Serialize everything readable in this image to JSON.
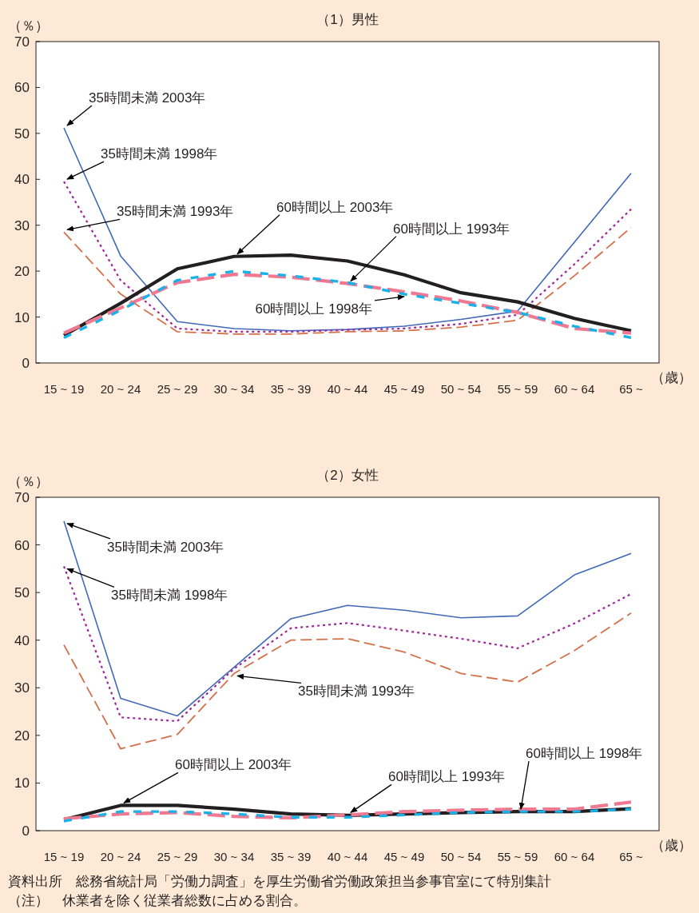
{
  "chart_data": [
    {
      "type": "line",
      "title": "（1）男性",
      "ylabel": "（％）",
      "xlabel": "（歳）",
      "categories": [
        "15 ~ 19",
        "20 ~ 24",
        "25 ~ 29",
        "30 ~ 34",
        "35 ~ 39",
        "40 ~ 44",
        "45 ~ 49",
        "50 ~ 54",
        "55 ~ 59",
        "60 ~ 64",
        "65 ~"
      ],
      "ylim": [
        0,
        70
      ],
      "yticks": [
        0,
        10,
        20,
        30,
        40,
        50,
        60,
        70
      ],
      "grid": false,
      "series": [
        {
          "color": "#4169b8",
          "line_style": "solid",
          "values": [
            51.2,
            23.3,
            9.0,
            7.5,
            7.0,
            7.3,
            8.0,
            9.5,
            11.3,
            26.3,
            41.3
          ]
        },
        {
          "color": "#a0279a",
          "line_style": "dotted",
          "values": [
            39.5,
            18.0,
            7.5,
            6.8,
            6.8,
            7.2,
            7.5,
            8.5,
            10.5,
            21.5,
            33.5
          ]
        },
        {
          "color": "#d4704a",
          "line_style": "dashed",
          "values": [
            28.5,
            15.0,
            6.8,
            6.3,
            6.3,
            6.8,
            7.0,
            7.8,
            9.3,
            19.0,
            29.5
          ]
        },
        {
          "color": "#231f20",
          "line_style": "solid",
          "values": [
            6.0,
            13.0,
            20.5,
            23.2,
            23.5,
            22.2,
            19.2,
            15.3,
            13.3,
            9.7,
            7.0
          ]
        },
        {
          "color": "#f07890",
          "line_style": "dashed",
          "values": [
            6.5,
            12.0,
            17.5,
            19.3,
            18.7,
            17.3,
            15.5,
            13.5,
            11.0,
            7.5,
            6.5
          ]
        },
        {
          "color": "#1ab0e8",
          "line_style": "dashed",
          "values": [
            5.5,
            11.5,
            18.0,
            20.0,
            19.0,
            17.5,
            15.0,
            13.0,
            11.0,
            8.0,
            5.5
          ]
        }
      ],
      "annotations": [
        {
          "text": "35時間未満 2003年",
          "x": "15 ~ 19",
          "y": 51.2
        },
        {
          "text": "35時間未満 1998年",
          "x": "15 ~ 19",
          "y": 39.5
        },
        {
          "text": "35時間未満 1993年",
          "x": "15 ~ 19",
          "y": 28.5
        },
        {
          "text": "60時間以上 2003年",
          "x": "30 ~ 34",
          "y": 23.2
        },
        {
          "text": "60時間以上 1993年",
          "x": "40 ~ 44",
          "y": 17.3
        },
        {
          "text": "60時間以上 1998年",
          "x": "45 ~ 49",
          "y": 15.0
        }
      ]
    },
    {
      "type": "line",
      "title": "（2）女性",
      "ylabel": "（％）",
      "xlabel": "（歳）",
      "categories": [
        "15 ~ 19",
        "20 ~ 24",
        "25 ~ 29",
        "30 ~ 34",
        "35 ~ 39",
        "40 ~ 44",
        "45 ~ 49",
        "50 ~ 54",
        "55 ~ 59",
        "60 ~ 64",
        "65 ~"
      ],
      "ylim": [
        0,
        70
      ],
      "yticks": [
        0,
        10,
        20,
        30,
        40,
        50,
        60,
        70
      ],
      "grid": false,
      "series": [
        {
          "color": "#4169b8",
          "line_style": "solid",
          "values": [
            65.0,
            27.8,
            24.1,
            34.3,
            44.5,
            47.3,
            46.3,
            44.7,
            45.1,
            53.7,
            58.2
          ]
        },
        {
          "color": "#a0279a",
          "line_style": "dotted",
          "values": [
            55.5,
            23.8,
            23.0,
            34.0,
            42.5,
            43.6,
            42.0,
            40.3,
            38.3,
            43.5,
            49.7
          ]
        },
        {
          "color": "#d4704a",
          "line_style": "dashed",
          "values": [
            39.0,
            17.2,
            20.2,
            33.0,
            40.0,
            40.3,
            37.5,
            33.0,
            31.2,
            37.8,
            45.7
          ]
        },
        {
          "color": "#231f20",
          "line_style": "solid",
          "values": [
            2.3,
            5.3,
            5.3,
            4.5,
            3.5,
            3.2,
            3.5,
            3.8,
            4.0,
            4.0,
            4.6
          ]
        },
        {
          "color": "#f07890",
          "line_style": "dashed",
          "values": [
            2.5,
            3.5,
            3.8,
            3.0,
            2.7,
            3.3,
            4.0,
            4.3,
            4.5,
            4.5,
            6.0
          ]
        },
        {
          "color": "#1ab0e8",
          "line_style": "dashed",
          "values": [
            2.0,
            4.0,
            4.0,
            3.5,
            2.8,
            2.8,
            3.3,
            3.8,
            4.0,
            4.0,
            4.5
          ]
        }
      ],
      "annotations": [
        {
          "text": "35時間未満 2003年",
          "x": "15 ~ 19",
          "y": 65.0
        },
        {
          "text": "35時間未満 1998年",
          "x": "15 ~ 19",
          "y": 55.5
        },
        {
          "text": "35時間未満 1993年",
          "x": "30 ~ 34",
          "y": 33.0
        },
        {
          "text": "60時間以上 2003年",
          "x": "20 ~ 24",
          "y": 5.3
        },
        {
          "text": "60時間以上 1993年",
          "x": "40 ~ 44",
          "y": 3.3
        },
        {
          "text": "60時間以上 1998年",
          "x": "55 ~ 59",
          "y": 4.0
        },
        "資料出所　総務省統計局「労働力調査」を厚生労働省労働政策担当参事官室にて特別集計",
        "（注）　休業者を除く従業者総数に占める割合。"
      ]
    }
  ]
}
